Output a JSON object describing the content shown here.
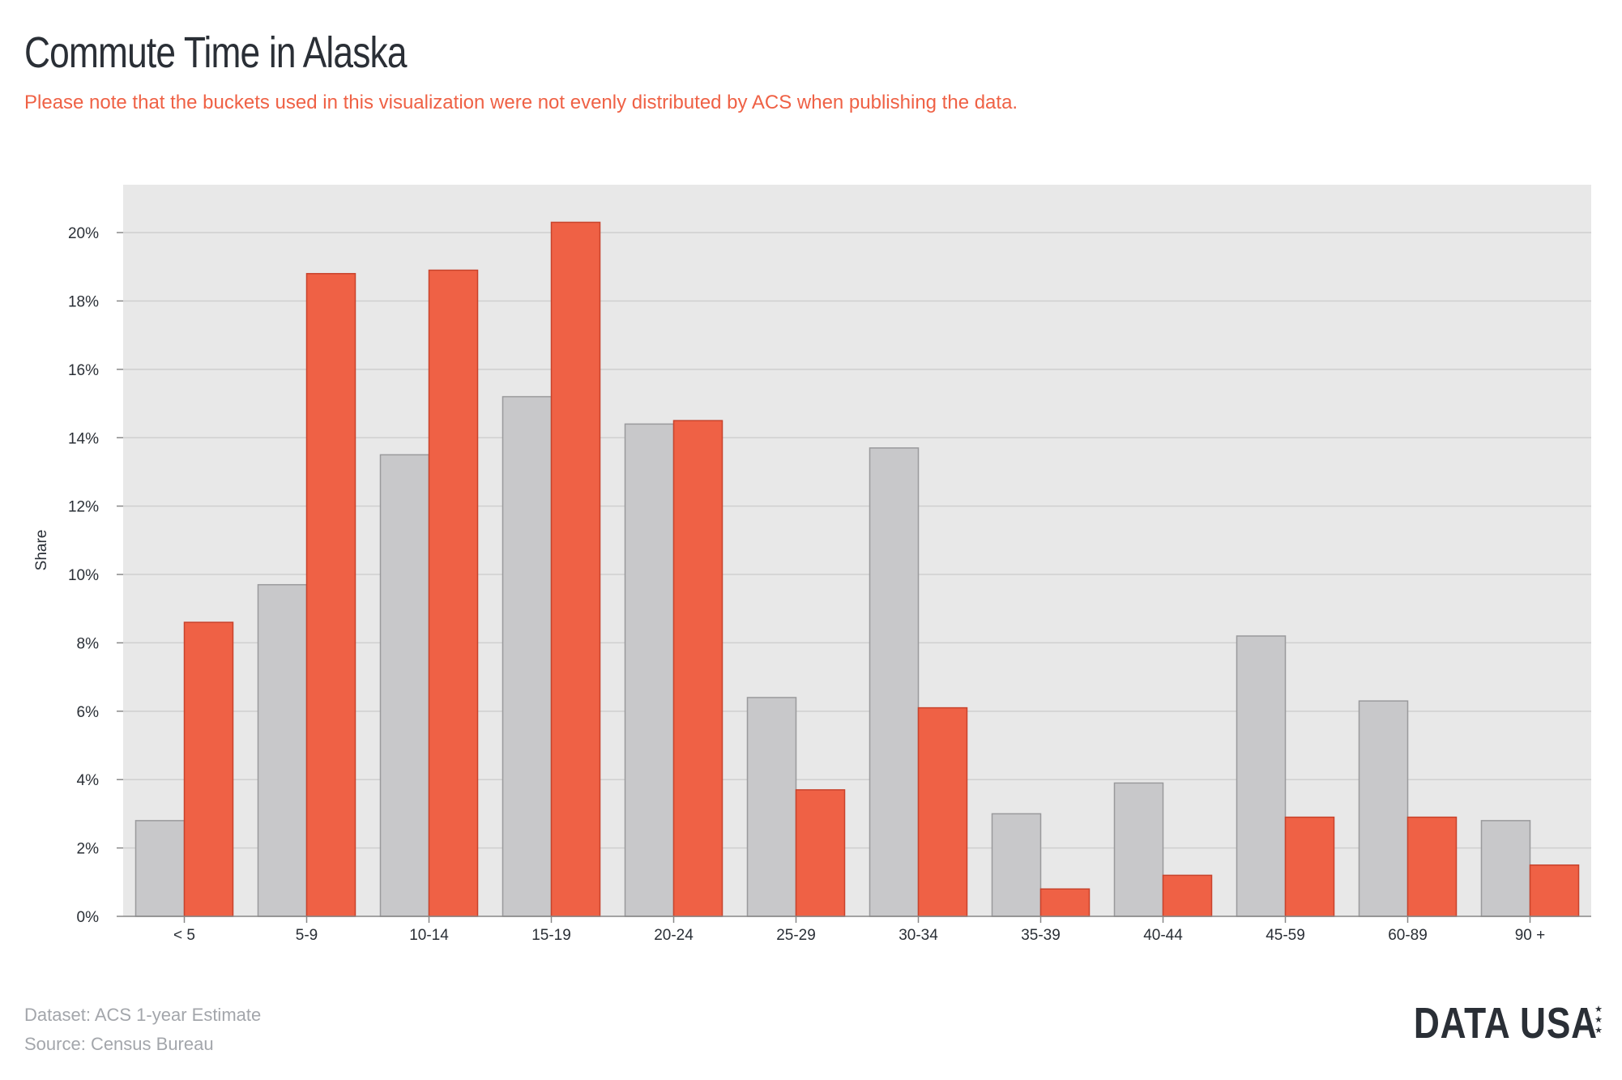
{
  "header": {
    "title": "Commute Time in Alaska",
    "subtitle": "Please note that the buckets used in this visualization were not evenly distributed by ACS when publishing the data."
  },
  "chart_data": {
    "type": "bar",
    "categories": [
      "< 5",
      "5-9",
      "10-14",
      "15-19",
      "20-24",
      "25-29",
      "30-34",
      "35-39",
      "40-44",
      "45-59",
      "60-89",
      "90 +"
    ],
    "series": [
      {
        "color": "#c8c8ca",
        "values": [
          2.8,
          9.7,
          13.5,
          15.2,
          14.4,
          6.4,
          13.7,
          3.0,
          3.9,
          8.2,
          6.3,
          2.8
        ]
      },
      {
        "color": "#ef6145",
        "values": [
          8.6,
          18.8,
          18.9,
          20.3,
          14.5,
          3.7,
          6.1,
          0.8,
          1.2,
          2.9,
          2.9,
          1.5
        ]
      }
    ],
    "ylabel": "Share",
    "xlabel": "",
    "ylim": [
      0,
      21.4
    ],
    "yticks": [
      0,
      2,
      4,
      6,
      8,
      10,
      12,
      14,
      16,
      18,
      20
    ],
    "ytick_suffix": "%",
    "grid": true,
    "background": "#e8e8e8"
  },
  "footer": {
    "dataset": "Dataset: ACS 1-year Estimate",
    "source": "Census Bureau",
    "source_prefix": "Source: "
  },
  "logo": {
    "text": "DATA USA",
    "stars": "★★★"
  }
}
